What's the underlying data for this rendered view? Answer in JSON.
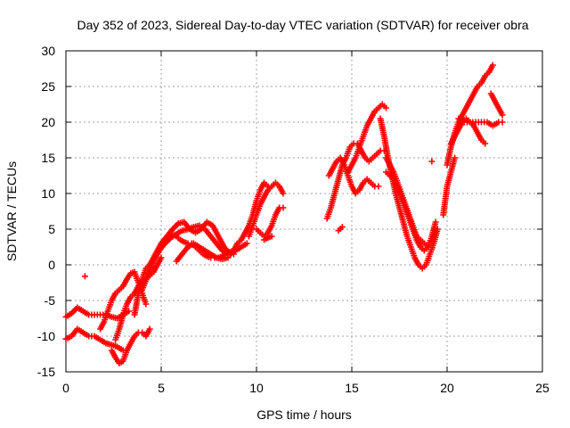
{
  "chart_data": {
    "type": "scatter",
    "title": "Day 352 of 2023, Sidereal Day-to-day VTEC variation (SDTVAR) for receiver obra",
    "xlabel": "GPS time / hours",
    "ylabel": "SDTVAR / TECUs",
    "xlim": [
      0,
      25
    ],
    "ylim": [
      -15,
      30
    ],
    "x_ticks": [
      0,
      5,
      10,
      15,
      20,
      25
    ],
    "y_ticks": [
      -15,
      -10,
      -5,
      0,
      5,
      10,
      15,
      20,
      25,
      30
    ],
    "grid": true,
    "marker": "+",
    "marker_color": "#ff0000",
    "series": [
      {
        "x": [
          0.0,
          0.3,
          0.6,
          0.9,
          1.2,
          1.5,
          1.8,
          2.1,
          2.4,
          2.7,
          3.0,
          3.3
        ],
        "y": [
          -7.3,
          -6.8,
          -6.0,
          -6.5,
          -7.0,
          -7.0,
          -7.0,
          -7.0,
          -7.3,
          -7.5,
          -7.0,
          -6.5
        ]
      },
      {
        "x": [
          0.0,
          0.3,
          0.6,
          0.9,
          1.2,
          1.5,
          1.8,
          2.1,
          2.4,
          2.7,
          3.0
        ],
        "y": [
          -10.4,
          -10.0,
          -9.0,
          -9.5,
          -10.0,
          -10.0,
          -10.5,
          -11.0,
          -11.2,
          -11.5,
          -12.0
        ]
      },
      {
        "x": [
          1.0
        ],
        "y": [
          -1.6
        ]
      },
      {
        "x": [
          1.8,
          2.0,
          2.2,
          2.4,
          2.6,
          2.8,
          3.0,
          3.2,
          3.4,
          3.6,
          3.8,
          4.0,
          4.2
        ],
        "y": [
          -9.0,
          -8.0,
          -6.5,
          -5.0,
          -4.0,
          -3.5,
          -3.0,
          -2.0,
          -1.2,
          -1.0,
          -2.5,
          -4.0,
          -5.5
        ]
      },
      {
        "x": [
          2.4,
          2.6,
          2.8,
          3.0,
          3.2,
          3.4,
          3.6,
          3.8,
          4.0,
          4.2,
          4.4
        ],
        "y": [
          -12.0,
          -13.0,
          -13.8,
          -13.5,
          -12.0,
          -11.0,
          -10.0,
          -9.5,
          -9.5,
          -10.0,
          -9.0
        ]
      },
      {
        "x": [
          2.6,
          2.8,
          3.0,
          3.2,
          3.4,
          3.6,
          3.8,
          4.0,
          4.2,
          4.4,
          4.6,
          4.8,
          5.0
        ],
        "y": [
          -10.5,
          -9.0,
          -7.0,
          -5.5,
          -4.5,
          -4.0,
          -3.0,
          -2.5,
          -2.0,
          -1.5,
          -1.0,
          0.0,
          1.0
        ]
      },
      {
        "x": [
          3.6,
          3.8,
          4.0,
          4.2,
          4.4,
          4.6,
          4.8,
          5.0,
          5.2,
          5.4,
          5.6,
          5.8,
          6.0,
          6.2,
          6.4,
          6.6,
          6.8,
          7.0,
          7.2,
          7.4,
          7.6,
          7.8,
          8.0,
          8.2,
          8.4,
          8.6,
          8.8,
          9.0
        ],
        "y": [
          -7.0,
          -4.0,
          -2.0,
          -0.5,
          0.0,
          1.0,
          2.0,
          3.0,
          3.5,
          4.0,
          4.3,
          4.0,
          3.5,
          3.2,
          3.0,
          3.0,
          2.5,
          2.0,
          1.5,
          1.2,
          1.0,
          1.0,
          1.0,
          1.2,
          1.5,
          1.8,
          2.0,
          2.5
        ]
      },
      {
        "x": [
          4.0,
          4.3,
          4.6,
          4.9,
          5.2,
          5.5,
          5.8,
          6.1,
          6.4,
          6.7,
          7.0,
          7.3,
          7.6,
          7.9,
          8.2,
          8.5,
          8.8
        ],
        "y": [
          -3.5,
          -1.5,
          0.5,
          2.0,
          3.0,
          3.8,
          4.3,
          4.8,
          5.0,
          5.3,
          5.5,
          5.0,
          4.0,
          3.0,
          2.0,
          1.5,
          1.5
        ]
      },
      {
        "x": [
          5.0,
          5.3,
          5.6,
          5.9,
          6.2,
          6.5,
          6.8,
          7.1,
          7.4,
          7.7,
          8.0,
          8.3,
          8.6,
          8.9,
          9.2,
          9.5
        ],
        "y": [
          3.0,
          4.0,
          5.0,
          5.8,
          6.0,
          5.0,
          4.5,
          5.0,
          6.0,
          5.5,
          4.0,
          2.5,
          1.5,
          2.0,
          2.5,
          3.0
        ]
      },
      {
        "x": [
          5.8,
          6.1,
          6.4,
          6.7,
          7.0,
          7.3,
          7.6,
          7.9,
          8.2,
          8.5
        ],
        "y": [
          0.5,
          1.5,
          2.5,
          3.0,
          2.5,
          2.0,
          1.5,
          1.0,
          0.8,
          1.0
        ]
      },
      {
        "x": [
          8.8,
          9.0,
          9.2,
          9.4,
          9.6,
          9.8,
          10.0,
          10.2,
          10.4,
          10.6
        ],
        "y": [
          2.0,
          3.0,
          3.5,
          4.5,
          5.5,
          7.0,
          9.0,
          10.5,
          11.5,
          11.0
        ]
      },
      {
        "x": [
          9.6,
          9.8,
          10.0,
          10.2,
          10.4,
          10.6,
          10.8,
          11.0,
          11.2,
          11.4
        ],
        "y": [
          4.0,
          5.5,
          7.0,
          8.5,
          9.5,
          10.5,
          11.0,
          11.5,
          11.0,
          10.0
        ]
      },
      {
        "x": [
          10.0,
          10.2,
          10.4,
          10.6,
          10.8,
          11.0,
          11.2,
          11.4
        ],
        "y": [
          5.0,
          4.5,
          4.0,
          4.5,
          5.5,
          7.0,
          8.0,
          8.0
        ]
      },
      {
        "x": [
          10.4,
          10.6,
          10.8
        ],
        "y": [
          3.5,
          3.8,
          4.0
        ]
      },
      {
        "x": [
          13.7,
          13.9,
          14.1,
          14.3,
          14.5,
          14.7,
          14.9,
          15.1,
          15.3,
          15.5,
          15.7,
          15.9,
          16.1,
          16.3,
          16.5,
          16.7
        ],
        "y": [
          6.5,
          8.0,
          10.0,
          12.0,
          14.0,
          15.0,
          16.5,
          17.0,
          17.0,
          16.0,
          15.0,
          14.5,
          15.0,
          15.5,
          16.0,
          16.0
        ]
      },
      {
        "x": [
          13.8,
          14.0,
          14.2,
          14.4,
          14.6,
          14.8,
          15.0,
          15.2,
          15.4,
          15.6,
          15.8,
          16.0,
          16.2,
          16.4
        ],
        "y": [
          12.5,
          13.5,
          14.5,
          15.0,
          14.0,
          12.5,
          11.0,
          10.0,
          10.5,
          11.5,
          12.0,
          11.5,
          11.0,
          11.0
        ]
      },
      {
        "x": [
          14.3,
          14.5
        ],
        "y": [
          4.8,
          5.3
        ]
      },
      {
        "x": [
          14.8,
          15.0,
          15.2,
          15.4,
          15.6,
          15.8,
          16.0,
          16.2,
          16.4,
          16.6,
          16.8
        ],
        "y": [
          13.0,
          14.0,
          15.0,
          16.5,
          18.0,
          19.5,
          20.5,
          21.5,
          22.0,
          22.5,
          22.0
        ]
      },
      {
        "x": [
          16.5,
          16.7,
          16.9,
          17.1,
          17.3,
          17.5,
          17.7,
          17.9,
          18.1,
          18.3,
          18.5,
          18.7,
          18.9,
          19.1,
          19.3,
          19.5
        ],
        "y": [
          20.5,
          18.0,
          15.0,
          12.5,
          10.0,
          8.0,
          6.0,
          4.0,
          2.5,
          1.0,
          0.0,
          -0.5,
          0.0,
          1.5,
          3.0,
          5.0
        ]
      },
      {
        "x": [
          16.8,
          17.0,
          17.2,
          17.4,
          17.6,
          17.8,
          18.0,
          18.2,
          18.4,
          18.6,
          18.8,
          19.0,
          19.2,
          19.4
        ],
        "y": [
          13.0,
          12.5,
          12.0,
          11.0,
          9.5,
          8.0,
          6.5,
          5.0,
          3.5,
          2.5,
          2.0,
          2.5,
          4.0,
          6.0
        ]
      },
      {
        "x": [
          16.8,
          17.0,
          17.2,
          17.4,
          17.6,
          17.8,
          18.0,
          18.2,
          18.4,
          18.6,
          18.8,
          19.0
        ],
        "y": [
          15.0,
          14.0,
          13.0,
          11.5,
          10.0,
          8.5,
          7.0,
          5.5,
          4.0,
          3.5,
          3.0,
          2.5
        ]
      },
      {
        "x": [
          19.8,
          20.0,
          20.2,
          20.4
        ],
        "y": [
          7.0,
          11.0,
          13.0,
          15.0
        ]
      },
      {
        "x": [
          19.2
        ],
        "y": [
          14.5
        ]
      },
      {
        "x": [
          20.0,
          20.2,
          20.4,
          20.6,
          20.8,
          21.0,
          21.2,
          21.4,
          21.6,
          21.8,
          22.0,
          22.2,
          22.4
        ],
        "y": [
          14.0,
          16.5,
          18.5,
          20.0,
          21.0,
          22.0,
          23.0,
          24.0,
          25.0,
          25.5,
          26.5,
          27.0,
          28.0
        ]
      },
      {
        "x": [
          20.2,
          20.4,
          20.6,
          20.8,
          21.0,
          21.2,
          21.4,
          21.6,
          21.8,
          22.0
        ],
        "y": [
          17.0,
          18.0,
          19.0,
          20.0,
          20.5,
          20.0,
          19.5,
          18.5,
          17.5,
          17.0
        ]
      },
      {
        "x": [
          20.6,
          20.9,
          21.2,
          21.5,
          21.8,
          22.1,
          22.4,
          22.7,
          22.9
        ],
        "y": [
          20.5,
          20.0,
          20.0,
          20.0,
          20.0,
          20.0,
          19.5,
          20.0,
          20.0
        ]
      },
      {
        "x": [
          22.3,
          22.5,
          22.7,
          22.9
        ],
        "y": [
          24.0,
          23.0,
          22.0,
          21.0
        ]
      }
    ]
  }
}
